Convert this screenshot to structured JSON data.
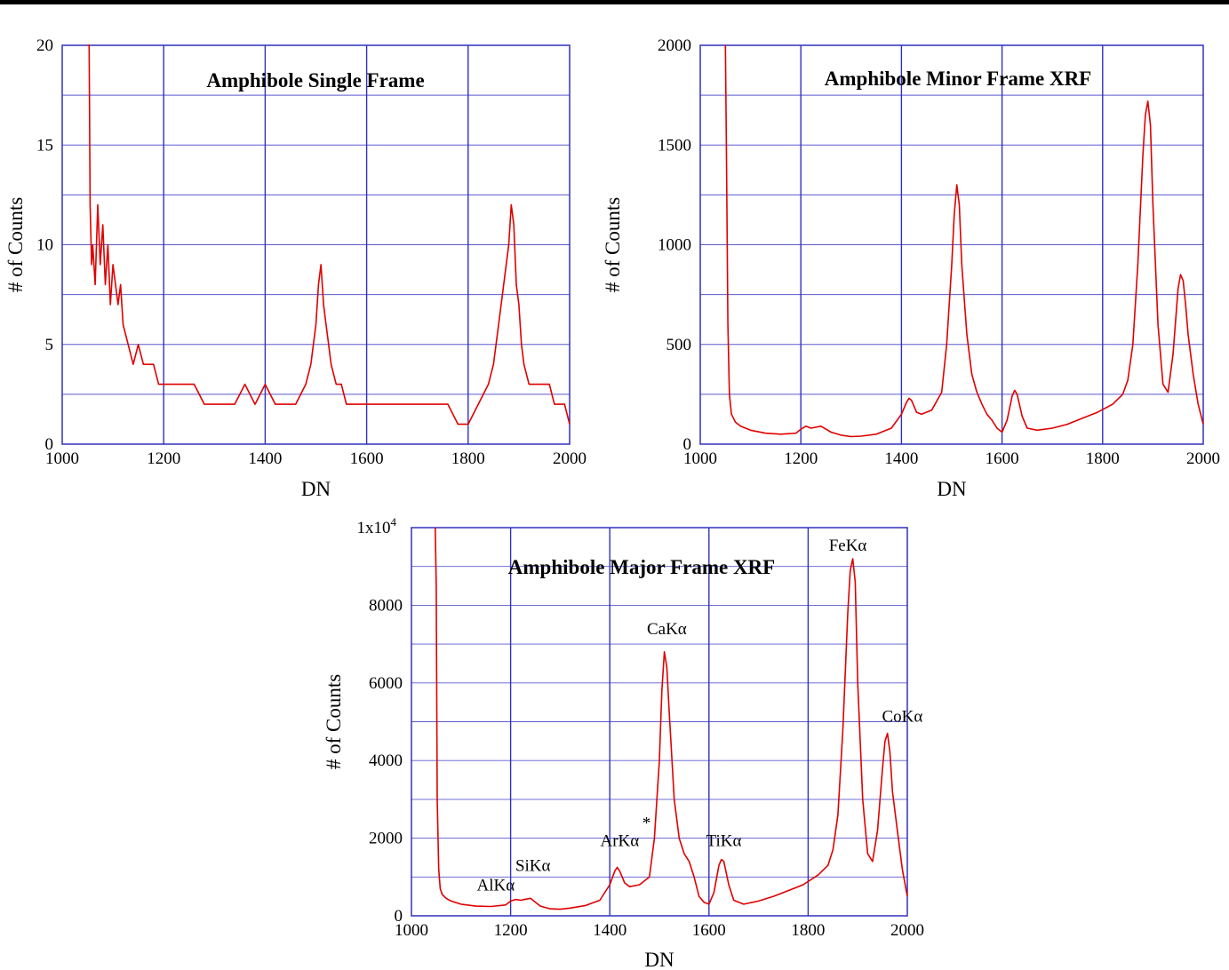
{
  "chart_data": [
    {
      "type": "line",
      "title": "Amphibole Single Frame",
      "xlabel": "DN",
      "ylabel": "# of Counts",
      "xlim": [
        1000,
        2000
      ],
      "ylim": [
        0,
        20
      ],
      "xticks": [
        "1000",
        "1200",
        "1400",
        "1600",
        "1800",
        "2000"
      ],
      "yticks": [
        "0",
        "5",
        "10",
        "15",
        "20"
      ],
      "grid": true,
      "color": "#e00000",
      "annotations": [],
      "series": [
        {
          "x": [
            1050,
            1053,
            1055,
            1058,
            1060,
            1065,
            1070,
            1075,
            1080,
            1085,
            1090,
            1095,
            1100,
            1105,
            1110,
            1115,
            1120,
            1130,
            1140,
            1150,
            1160,
            1170,
            1180,
            1190,
            1200,
            1220,
            1240,
            1260,
            1280,
            1300,
            1320,
            1340,
            1360,
            1380,
            1400,
            1420,
            1440,
            1460,
            1480,
            1490,
            1500,
            1505,
            1510,
            1515,
            1520,
            1525,
            1530,
            1540,
            1550,
            1560,
            1580,
            1600,
            1620,
            1640,
            1660,
            1680,
            1700,
            1720,
            1740,
            1760,
            1780,
            1800,
            1820,
            1840,
            1850,
            1860,
            1870,
            1880,
            1885,
            1890,
            1895,
            1900,
            1905,
            1910,
            1920,
            1930,
            1940,
            1950,
            1960,
            1970,
            1980,
            1990,
            2000
          ],
          "y": [
            20,
            20,
            12,
            9,
            10,
            8,
            12,
            9,
            11,
            8,
            10,
            7,
            9,
            8,
            7,
            8,
            6,
            5,
            4,
            5,
            4,
            4,
            4,
            3,
            3,
            3,
            3,
            3,
            2,
            2,
            2,
            2,
            3,
            2,
            3,
            2,
            2,
            2,
            3,
            4,
            6,
            8,
            9,
            7,
            6,
            5,
            4,
            3,
            3,
            2,
            2,
            2,
            2,
            2,
            2,
            2,
            2,
            2,
            2,
            2,
            1,
            1,
            2,
            3,
            4,
            6,
            8,
            10,
            12,
            11,
            8,
            7,
            5,
            4,
            3,
            3,
            3,
            3,
            3,
            2,
            2,
            2,
            1
          ]
        }
      ]
    },
    {
      "type": "line",
      "title": "Amphibole Minor Frame XRF",
      "xlabel": "DN",
      "ylabel": "# of Counts",
      "xlim": [
        1000,
        2000
      ],
      "ylim": [
        0,
        2000
      ],
      "xticks": [
        "1000",
        "1200",
        "1400",
        "1600",
        "1800",
        "2000"
      ],
      "yticks": [
        "0",
        "500",
        "1000",
        "1500",
        "2000"
      ],
      "grid": true,
      "color": "#e00000",
      "annotations": [],
      "series": [
        {
          "x": [
            1050,
            1052,
            1055,
            1058,
            1062,
            1070,
            1080,
            1100,
            1130,
            1160,
            1190,
            1200,
            1210,
            1220,
            1240,
            1260,
            1280,
            1300,
            1320,
            1350,
            1380,
            1400,
            1410,
            1415,
            1420,
            1430,
            1440,
            1460,
            1480,
            1490,
            1500,
            1505,
            1510,
            1515,
            1520,
            1530,
            1540,
            1550,
            1560,
            1570,
            1580,
            1590,
            1600,
            1610,
            1620,
            1625,
            1630,
            1640,
            1650,
            1670,
            1700,
            1730,
            1760,
            1790,
            1820,
            1840,
            1850,
            1860,
            1870,
            1880,
            1885,
            1890,
            1895,
            1900,
            1910,
            1920,
            1930,
            1940,
            1950,
            1955,
            1960,
            1965,
            1970,
            1980,
            1990,
            2000
          ],
          "y": [
            2000,
            1500,
            600,
            250,
            150,
            110,
            90,
            70,
            55,
            50,
            55,
            75,
            90,
            80,
            90,
            60,
            45,
            38,
            40,
            50,
            80,
            150,
            210,
            230,
            220,
            160,
            150,
            170,
            260,
            500,
            900,
            1150,
            1300,
            1200,
            900,
            550,
            350,
            260,
            200,
            150,
            120,
            80,
            60,
            120,
            240,
            270,
            250,
            140,
            80,
            70,
            80,
            100,
            130,
            160,
            200,
            250,
            320,
            500,
            900,
            1450,
            1650,
            1720,
            1600,
            1200,
            600,
            300,
            260,
            450,
            780,
            850,
            820,
            700,
            550,
            350,
            200,
            100
          ]
        }
      ]
    },
    {
      "type": "line",
      "title": "Amphibole Major Frame XRF",
      "xlabel": "DN",
      "ylabel": "# of Counts",
      "xlim": [
        1000,
        2000
      ],
      "ylim": [
        0,
        10000
      ],
      "xticks": [
        "1000",
        "1200",
        "1400",
        "1600",
        "1800",
        "2000"
      ],
      "yticks": [
        "0",
        "2000",
        "4000",
        "6000",
        "8000",
        "1x10"
      ],
      "ytop_exponent": "4",
      "grid": true,
      "color": "#e00000",
      "annotations": [
        {
          "text": "AlKα",
          "x": 1170,
          "y": 650
        },
        {
          "text": "SiKα",
          "x": 1245,
          "y": 1150
        },
        {
          "text": "ArKα",
          "x": 1420,
          "y": 1800
        },
        {
          "text": "*",
          "x": 1474,
          "y": 2250
        },
        {
          "text": "CaKα",
          "x": 1515,
          "y": 7250
        },
        {
          "text": "TiKα",
          "x": 1630,
          "y": 1800
        },
        {
          "text": "FeKα",
          "x": 1880,
          "y": 9400
        },
        {
          "text": "CoKα",
          "x": 1990,
          "y": 5000
        }
      ],
      "series": [
        {
          "x": [
            1048,
            1050,
            1052,
            1055,
            1058,
            1062,
            1070,
            1080,
            1100,
            1130,
            1160,
            1190,
            1200,
            1210,
            1220,
            1240,
            1260,
            1280,
            1300,
            1320,
            1350,
            1380,
            1400,
            1410,
            1415,
            1420,
            1430,
            1440,
            1460,
            1480,
            1490,
            1500,
            1505,
            1510,
            1515,
            1520,
            1530,
            1540,
            1550,
            1560,
            1570,
            1580,
            1590,
            1600,
            1610,
            1620,
            1625,
            1630,
            1640,
            1650,
            1670,
            1700,
            1730,
            1760,
            1790,
            1820,
            1840,
            1850,
            1860,
            1870,
            1880,
            1885,
            1890,
            1895,
            1900,
            1910,
            1920,
            1930,
            1940,
            1950,
            1955,
            1960,
            1965,
            1970,
            1980,
            1990,
            2000
          ],
          "y": [
            10000,
            8500,
            3000,
            1200,
            700,
            550,
            450,
            380,
            300,
            250,
            240,
            280,
            380,
            420,
            400,
            450,
            250,
            180,
            170,
            200,
            260,
            400,
            800,
            1150,
            1250,
            1150,
            850,
            750,
            800,
            1000,
            2000,
            4000,
            5800,
            6800,
            6400,
            5200,
            3000,
            2000,
            1600,
            1400,
            1000,
            500,
            350,
            300,
            600,
            1300,
            1450,
            1400,
            800,
            400,
            300,
            380,
            500,
            650,
            800,
            1050,
            1300,
            1700,
            2600,
            4800,
            7800,
            8900,
            9200,
            8600,
            6000,
            3000,
            1600,
            1400,
            2200,
            3800,
            4500,
            4700,
            4200,
            3200,
            2200,
            1200,
            500
          ]
        }
      ]
    }
  ]
}
